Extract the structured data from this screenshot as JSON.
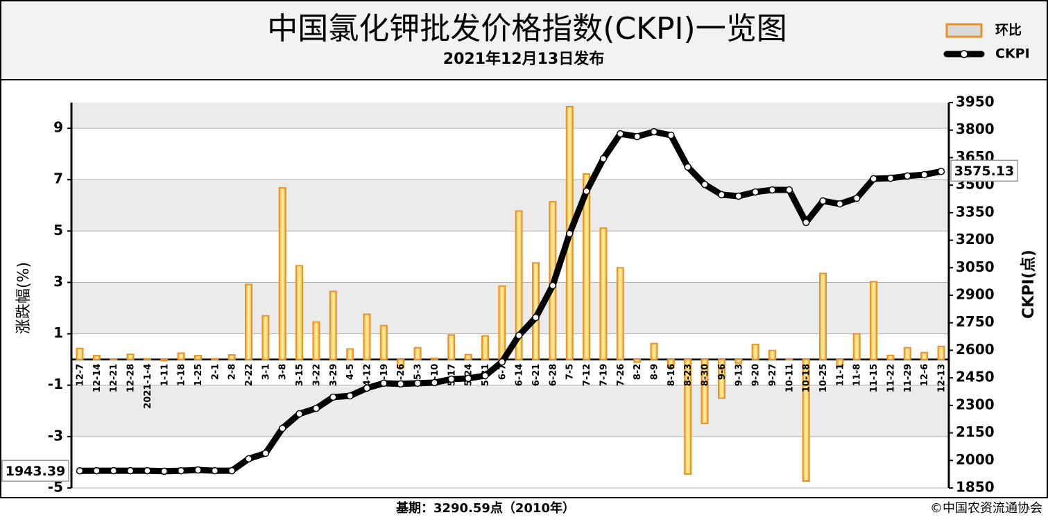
{
  "chart_data": {
    "type": "bar",
    "title": "中国氯化钾批发价格指数(CKPI)一览图",
    "subtitle": "2021年12月13日发布",
    "y_label": "涨跌幅(%)",
    "y2_label": "CKPI(点)",
    "footer": "基期：3290.59点（2010年）",
    "source": "©中国农资流通协会",
    "categories": [
      "12-7",
      "12-14",
      "12-21",
      "12-28",
      "2021-1-4",
      "1-11",
      "1-18",
      "1-25",
      "2-1",
      "2-8",
      "2-22",
      "3-1",
      "3-8",
      "3-15",
      "3-22",
      "3-29",
      "4-5",
      "4-12",
      "4-19",
      "4-26",
      "5-3",
      "5-10",
      "5-17",
      "5-24",
      "5-31",
      "6-7",
      "6-14",
      "6-21",
      "6-28",
      "7-5",
      "7-12",
      "7-19",
      "7-26",
      "8-2",
      "8-9",
      "8-16",
      "8-23",
      "8-30",
      "9-6",
      "9-13",
      "9-20",
      "9-27",
      "10-11",
      "10-18",
      "10-25",
      "11-1",
      "11-8",
      "11-15",
      "11-22",
      "11-29",
      "12-6",
      "12-13"
    ],
    "series": [
      {
        "name": "环比",
        "type": "bar",
        "color": "#e8902a",
        "fill": "#fff3a6",
        "values": [
          0.43,
          0.15,
          0.02,
          0.2,
          0.03,
          -0.05,
          0.25,
          0.15,
          0.03,
          0.18,
          2.92,
          1.7,
          6.68,
          3.65,
          1.46,
          2.65,
          0.41,
          1.76,
          1.32,
          -0.32,
          0.46,
          0.05,
          0.95,
          0.19,
          0.92,
          2.86,
          5.78,
          3.76,
          6.14,
          9.84,
          7.22,
          5.11,
          3.57,
          -0.1,
          0.62,
          -0.3,
          -4.46,
          -2.49,
          -1.51,
          -0.14,
          0.59,
          0.35,
          0.02,
          -4.73,
          3.35,
          -0.24,
          1.0,
          3.03,
          0.16,
          0.46,
          0.27,
          0.51
        ]
      },
      {
        "name": "CKPI",
        "type": "line",
        "axis": "y2",
        "color": "#000000",
        "values": [
          1943.39,
          1944,
          1944,
          1944,
          1944,
          1941,
          1944,
          1948,
          1944,
          1944,
          2009,
          2039,
          2175,
          2254,
          2284,
          2345,
          2352,
          2394,
          2421,
          2417,
          2421,
          2424,
          2443,
          2447,
          2462,
          2537,
          2681,
          2779,
          2953,
          3236,
          3467,
          3644,
          3780,
          3765,
          3791,
          3772,
          3599,
          3504,
          3448,
          3440,
          3463,
          3474,
          3474,
          3297,
          3414,
          3398,
          3429,
          3535,
          3538,
          3550,
          3557,
          3575.13
        ]
      }
    ],
    "ylim": [
      -5,
      10
    ],
    "yticks": [
      -5,
      -3,
      -1,
      1,
      3,
      5,
      7,
      9
    ],
    "y2lim": [
      1850,
      3950
    ],
    "y2ticks": [
      1850,
      2000,
      2150,
      2300,
      2450,
      2600,
      2750,
      2900,
      3050,
      3200,
      3350,
      3500,
      3650,
      3800,
      3950
    ],
    "grid": true,
    "legend": "top-right"
  }
}
